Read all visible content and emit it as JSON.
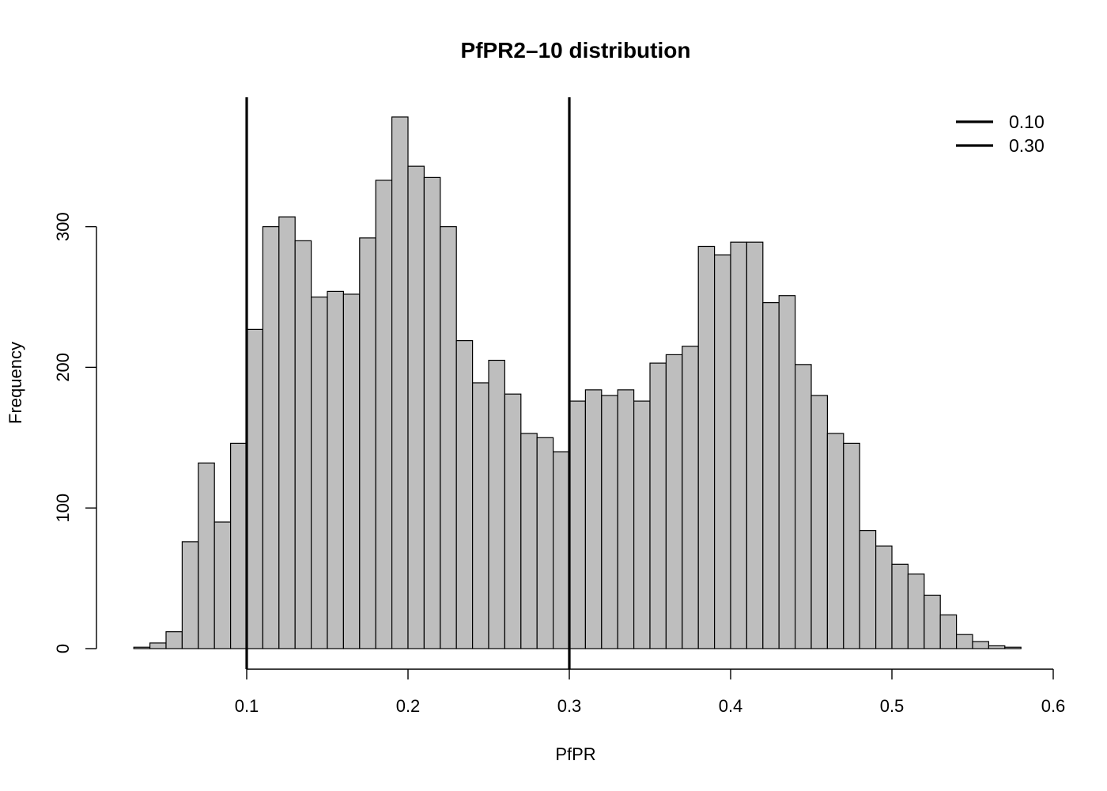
{
  "chart_data": {
    "type": "bar",
    "title": "PfPR2–10 distribution",
    "xlabel": "PfPR",
    "ylabel": "Frequency",
    "xlim": [
      0.03,
      0.6
    ],
    "ylim": [
      0,
      380
    ],
    "bin_start": 0.03,
    "bin_width": 0.01,
    "values": [
      1,
      4,
      12,
      76,
      132,
      90,
      146,
      227,
      300,
      307,
      290,
      250,
      254,
      252,
      292,
      333,
      378,
      343,
      335,
      300,
      219,
      189,
      205,
      181,
      153,
      150,
      140,
      176,
      184,
      180,
      184,
      176,
      203,
      209,
      215,
      286,
      280,
      289,
      289,
      246,
      251,
      202,
      180,
      153,
      146,
      84,
      73,
      60,
      53,
      38,
      24,
      10,
      5,
      2,
      1
    ],
    "xticks": [
      0.1,
      0.2,
      0.3,
      0.4,
      0.5,
      0.6
    ],
    "xtick_labels": [
      "0.1",
      "0.2",
      "0.3",
      "0.4",
      "0.5",
      "0.6"
    ],
    "yticks": [
      0,
      100,
      200,
      300
    ],
    "ytick_labels": [
      "0",
      "100",
      "200",
      "300"
    ],
    "reference_lines": [
      {
        "x": 0.1,
        "label": "0.10",
        "color": "#000000"
      },
      {
        "x": 0.3,
        "label": "0.30",
        "color": "#000000"
      }
    ],
    "legend": {
      "position": "top-right",
      "entries": [
        "0.10",
        "0.30"
      ]
    },
    "bar_color": "#bebebe",
    "grid": false
  }
}
